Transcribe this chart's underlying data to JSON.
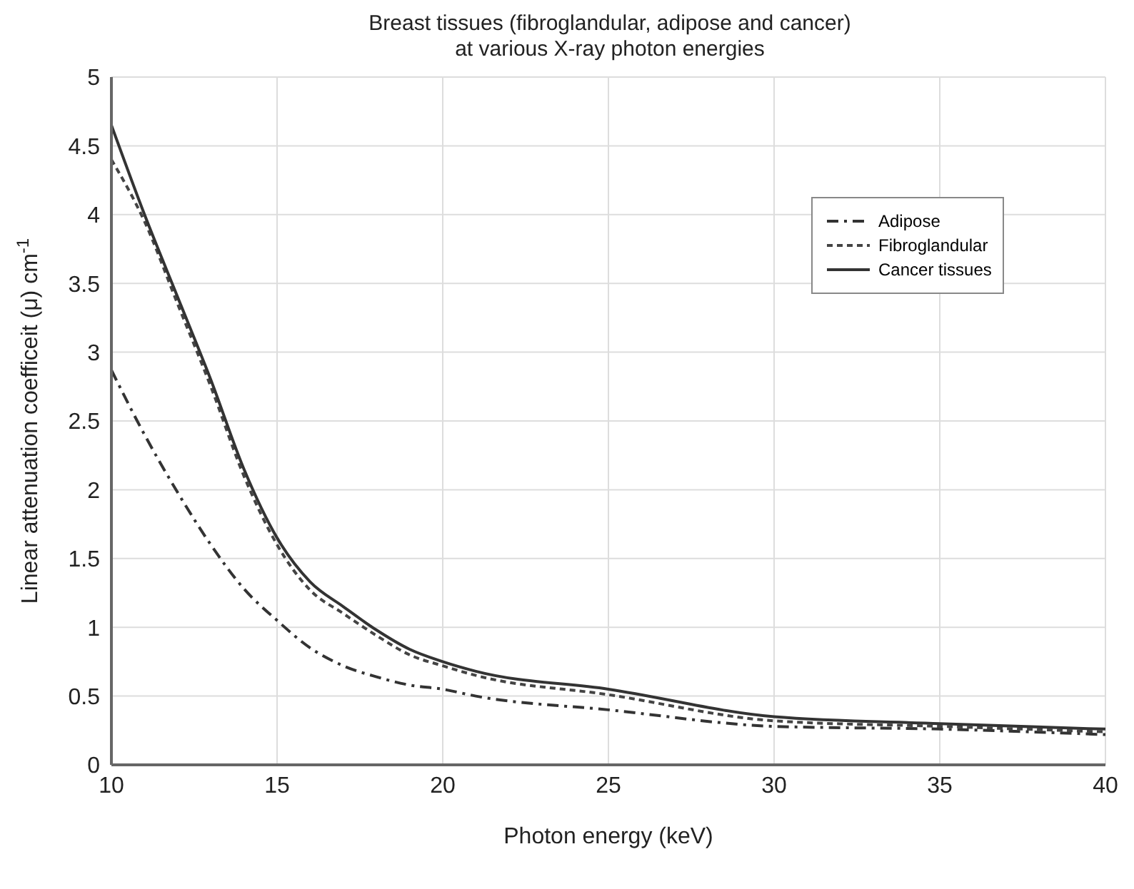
{
  "chart_data": {
    "type": "line",
    "title": "Breast tissues (fibroglandular, adipose and cancer)\nat various X-ray photon energies",
    "xlabel": "Photon energy (keV)",
    "ylabel": "Linear attenuation coefficeit (μ) cm$^{-1}$",
    "x": [
      10,
      11,
      12,
      13,
      14,
      15,
      16,
      17,
      18,
      19,
      20,
      21,
      25,
      30,
      35,
      40
    ],
    "series": [
      {
        "name": "Adipose",
        "color": "#333333",
        "line_style": "dashdot",
        "values": [
          2.87,
          2.4,
          1.98,
          1.6,
          1.28,
          1.05,
          0.85,
          0.72,
          0.64,
          0.58,
          0.55,
          0.5,
          0.4,
          0.28,
          0.26,
          0.22
        ]
      },
      {
        "name": "Fibroglandular",
        "color": "#444444",
        "line_style": "dashed",
        "values": [
          4.4,
          3.95,
          3.35,
          2.75,
          2.1,
          1.6,
          1.27,
          1.1,
          0.94,
          0.8,
          0.72,
          0.65,
          0.51,
          0.32,
          0.28,
          0.24
        ]
      },
      {
        "name": "Cancer tissues",
        "color": "#333333",
        "line_style": "solid",
        "values": [
          4.65,
          4.0,
          3.4,
          2.8,
          2.15,
          1.65,
          1.33,
          1.15,
          0.98,
          0.84,
          0.75,
          0.68,
          0.55,
          0.35,
          0.3,
          0.26
        ]
      }
    ],
    "xlim": [
      10,
      40
    ],
    "xticks": [
      10,
      15,
      20,
      25,
      30,
      35,
      40
    ],
    "ylim": [
      0,
      5
    ],
    "yticks": [
      0,
      0.5,
      1,
      1.5,
      2,
      2.5,
      3,
      3.5,
      4,
      4.5,
      5
    ],
    "grid": true,
    "legend": "top right",
    "marker": "none"
  }
}
